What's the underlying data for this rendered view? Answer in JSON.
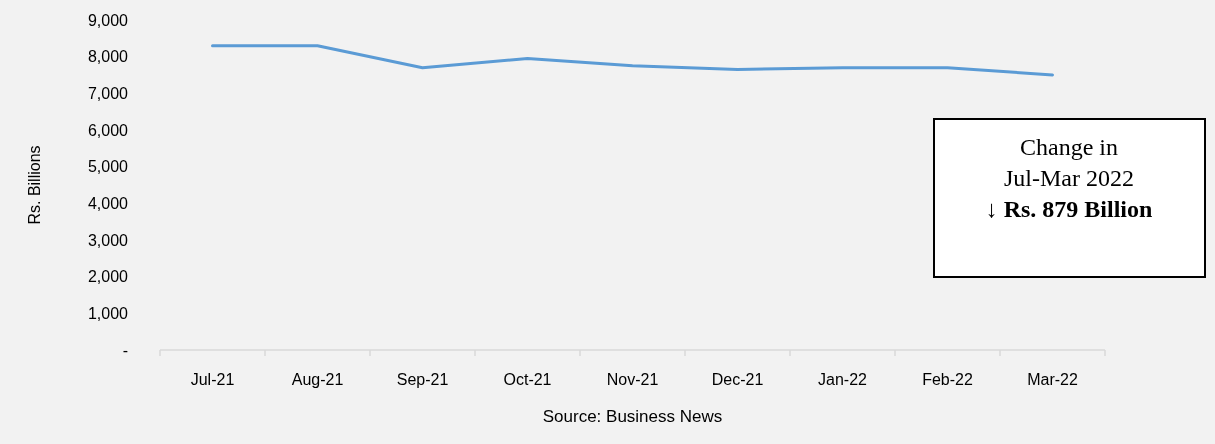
{
  "chart_data": {
    "type": "line",
    "ylabel": "Rs. Billions",
    "categories": [
      "Jul-21",
      "Aug-21",
      "Sep-21",
      "Oct-21",
      "Nov-21",
      "Dec-21",
      "Jan-22",
      "Feb-22",
      "Mar-22"
    ],
    "series": [
      {
        "color": "#5b9bd5",
        "values": [
          8300,
          8300,
          7700,
          7950,
          7750,
          7650,
          7700,
          7700,
          7500
        ]
      }
    ],
    "ylim": [
      0,
      9000
    ],
    "yticks": [
      {
        "value": 0,
        "label": "-"
      },
      {
        "value": 1000,
        "label": "1,000"
      },
      {
        "value": 2000,
        "label": "2,000"
      },
      {
        "value": 3000,
        "label": "3,000"
      },
      {
        "value": 4000,
        "label": "4,000"
      },
      {
        "value": 5000,
        "label": "5,000"
      },
      {
        "value": 6000,
        "label": "6,000"
      },
      {
        "value": 7000,
        "label": "7,000"
      },
      {
        "value": 8000,
        "label": "8,000"
      },
      {
        "value": 9000,
        "label": "9,000"
      }
    ],
    "grid": false,
    "marker": "none",
    "line_style": "solid",
    "annotations": [
      "Change in\nJul-Mar 2022\n↓ Rs. 879 Billion",
      "Source: Business News"
    ]
  }
}
